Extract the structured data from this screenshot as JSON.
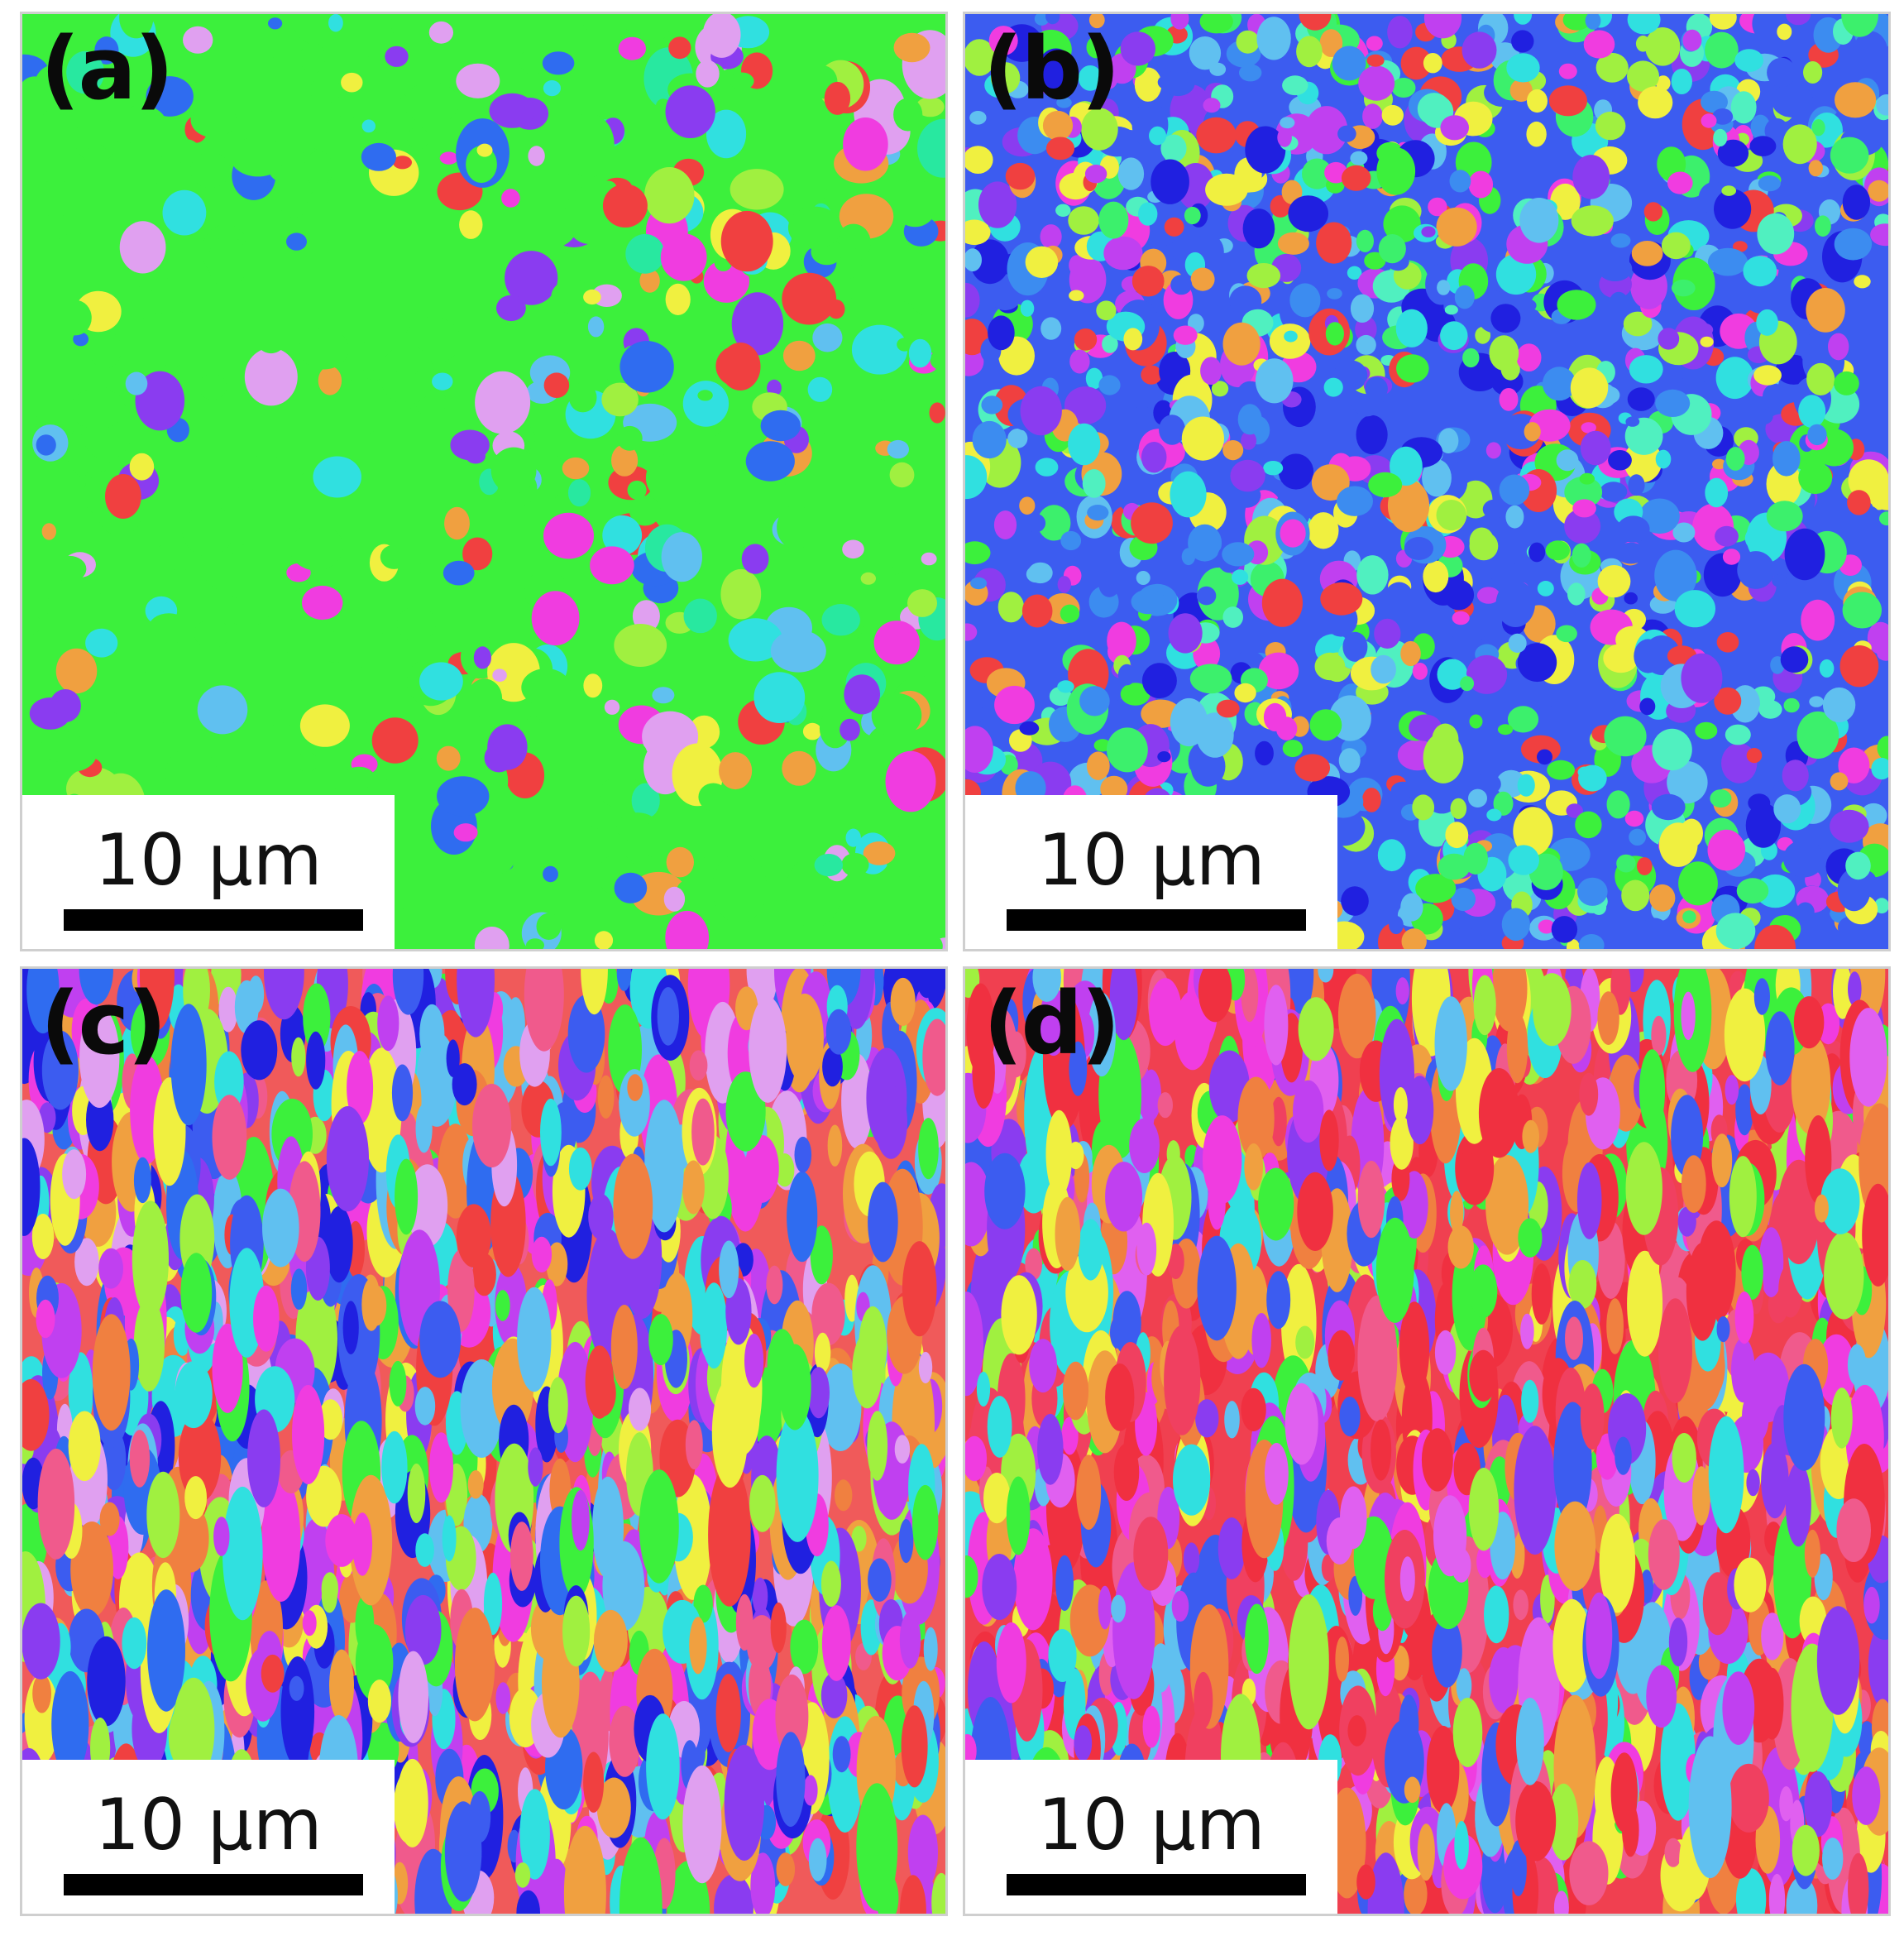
{
  "panels": [
    {
      "id": "a",
      "label": "(a)",
      "scale_text": "10 µm",
      "base_color": "#3cf03c",
      "palette": [
        "#3cf03c",
        "#3cf03c",
        "#3cf03c",
        "#3cf03c",
        "#3cf03c",
        "#28e8a0",
        "#30e0e0",
        "#2f6cf0",
        "#8a3cf0",
        "#f03ce0",
        "#f04040",
        "#f0a040",
        "#f0f040",
        "#a0f040",
        "#e0a0f0",
        "#60c0f0"
      ]
    },
    {
      "id": "b",
      "label": "(b)",
      "scale_text": "10 µm",
      "base_color": "#3c5cf0",
      "palette": [
        "#3c5cf0",
        "#3c5cf0",
        "#3c8cf0",
        "#30e0e0",
        "#3cf06c",
        "#3cf03c",
        "#8a3cf0",
        "#c040f0",
        "#f03ce0",
        "#f04040",
        "#f0a040",
        "#f0f040",
        "#a0f040",
        "#60c0f0",
        "#2020e0",
        "#50f0c0"
      ]
    },
    {
      "id": "c",
      "label": "(c)",
      "scale_text": "10 µm",
      "base_color": "#f05a5a",
      "palette": [
        "#f04040",
        "#f05a8c",
        "#f03ce0",
        "#f0a040",
        "#f0f040",
        "#a0f040",
        "#3cf03c",
        "#30e0e0",
        "#3c5cf0",
        "#2f6cf0",
        "#8a3cf0",
        "#c040f0",
        "#60c0f0",
        "#f08040",
        "#e0a0f0",
        "#2020e0"
      ]
    },
    {
      "id": "d",
      "label": "(d)",
      "scale_text": "10 µm",
      "base_color": "#f04050",
      "palette": [
        "#f03040",
        "#f03040",
        "#f04060",
        "#f05a8c",
        "#f03ce0",
        "#f0a040",
        "#f0f040",
        "#a0f040",
        "#3cf03c",
        "#30e0e0",
        "#3c5cf0",
        "#8a3cf0",
        "#c040f0",
        "#60c0f0",
        "#f08040",
        "#e060f0"
      ]
    }
  ]
}
